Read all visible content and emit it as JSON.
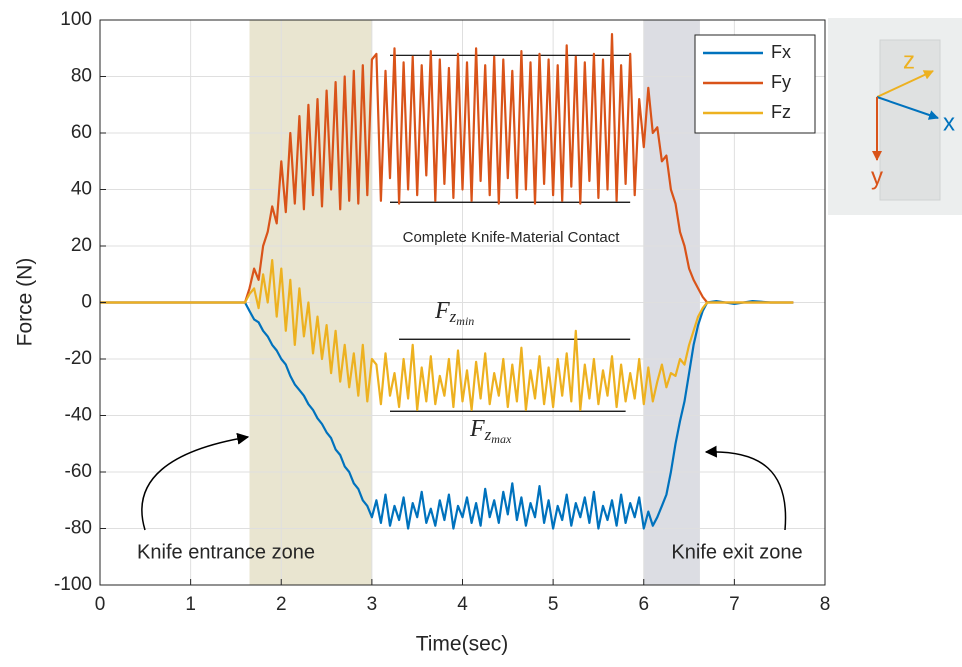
{
  "chart_data": {
    "type": "line",
    "xlabel": "Time(sec)",
    "ylabel": "Force (N)",
    "xlim": [
      0,
      8
    ],
    "ylim": [
      -100,
      100
    ],
    "xticks": [
      0,
      1,
      2,
      3,
      4,
      5,
      6,
      7,
      8
    ],
    "yticks": [
      -100,
      -80,
      -60,
      -40,
      -20,
      0,
      20,
      40,
      60,
      80,
      100
    ],
    "grid": true,
    "legend": "northeast",
    "x": [
      0,
      0.5,
      1,
      1.5,
      1.6,
      1.65,
      1.7,
      1.75,
      1.8,
      1.85,
      1.9,
      1.95,
      2,
      2.05,
      2.1,
      2.15,
      2.2,
      2.25,
      2.3,
      2.35,
      2.4,
      2.45,
      2.5,
      2.55,
      2.6,
      2.65,
      2.7,
      2.75,
      2.8,
      2.85,
      2.9,
      2.95,
      3,
      3.05,
      3.1,
      3.15,
      3.2,
      3.25,
      3.3,
      3.35,
      3.4,
      3.45,
      3.5,
      3.55,
      3.6,
      3.65,
      3.7,
      3.75,
      3.8,
      3.85,
      3.9,
      3.95,
      4,
      4.05,
      4.1,
      4.15,
      4.2,
      4.25,
      4.3,
      4.35,
      4.4,
      4.45,
      4.5,
      4.55,
      4.6,
      4.65,
      4.7,
      4.75,
      4.8,
      4.85,
      4.9,
      4.95,
      5,
      5.05,
      5.1,
      5.15,
      5.2,
      5.25,
      5.3,
      5.35,
      5.4,
      5.45,
      5.5,
      5.55,
      5.6,
      5.65,
      5.7,
      5.75,
      5.8,
      5.85,
      5.9,
      5.95,
      6,
      6.05,
      6.1,
      6.15,
      6.2,
      6.25,
      6.3,
      6.35,
      6.4,
      6.45,
      6.5,
      6.55,
      6.6,
      6.65,
      6.7,
      6.8,
      7,
      7.2,
      7.4,
      7.65
    ],
    "series": [
      {
        "name": "Fx",
        "color": "#0072bd",
        "values": [
          0,
          0,
          0,
          0,
          0,
          -3,
          -6,
          -7,
          -10,
          -12,
          -15,
          -17,
          -20,
          -22,
          -26,
          -29,
          -31,
          -33,
          -36,
          -38,
          -41,
          -43,
          -46,
          -48,
          -52,
          -54,
          -58,
          -60,
          -64,
          -66,
          -70,
          -72,
          -76,
          -70,
          -78,
          -68,
          -79,
          -72,
          -77,
          -69,
          -80,
          -71,
          -76,
          -67,
          -78,
          -73,
          -79,
          -70,
          -77,
          -68,
          -80,
          -72,
          -76,
          -69,
          -78,
          -71,
          -79,
          -66,
          -76,
          -70,
          -78,
          -67,
          -75,
          -64,
          -77,
          -69,
          -79,
          -71,
          -76,
          -65,
          -78,
          -70,
          -80,
          -72,
          -77,
          -68,
          -79,
          -71,
          -76,
          -69,
          -78,
          -67,
          -80,
          -72,
          -77,
          -70,
          -79,
          -68,
          -78,
          -71,
          -76,
          -69,
          -80,
          -74,
          -79,
          -76,
          -72,
          -68,
          -60,
          -50,
          -42,
          -35,
          -25,
          -15,
          -8,
          -3,
          0,
          0.5,
          -0.5,
          0.5,
          0,
          0
        ]
      },
      {
        "name": "Fy",
        "color": "#d95319",
        "values": [
          0,
          0,
          0,
          0,
          0,
          5,
          12,
          8,
          20,
          25,
          34,
          28,
          50,
          32,
          60,
          35,
          66,
          33,
          70,
          38,
          72,
          34,
          75,
          40,
          78,
          33,
          80,
          36,
          82,
          35,
          84,
          38,
          86,
          88,
          36,
          82,
          44,
          90,
          35,
          85,
          40,
          87,
          38,
          84,
          45,
          89,
          36,
          86,
          42,
          83,
          37,
          88,
          40,
          85,
          36,
          90,
          43,
          84,
          38,
          87,
          35,
          86,
          44,
          82,
          37,
          89,
          40,
          85,
          35,
          88,
          42,
          86,
          38,
          84,
          36,
          91,
          41,
          87,
          35,
          85,
          43,
          88,
          37,
          86,
          40,
          95,
          36,
          84,
          42,
          88,
          38,
          72,
          55,
          76,
          60,
          62,
          50,
          52,
          40,
          35,
          25,
          20,
          12,
          8,
          5,
          2,
          0,
          0,
          0,
          0,
          0,
          0
        ]
      },
      {
        "name": "Fz",
        "color": "#edb120",
        "values": [
          0,
          0,
          0,
          0,
          0,
          3,
          5,
          -2,
          10,
          0,
          15,
          -5,
          12,
          -10,
          8,
          -15,
          5,
          -12,
          0,
          -18,
          -5,
          -20,
          -8,
          -25,
          -10,
          -28,
          -15,
          -30,
          -18,
          -33,
          -15,
          -35,
          -20,
          -22,
          -36,
          -18,
          -33,
          -25,
          -37,
          -20,
          -34,
          -15,
          -38,
          -23,
          -35,
          -19,
          -36,
          -26,
          -33,
          -20,
          -37,
          -17,
          -35,
          -24,
          -38,
          -21,
          -34,
          -18,
          -36,
          -25,
          -33,
          -20,
          -37,
          -22,
          -35,
          -16,
          -38,
          -24,
          -34,
          -19,
          -36,
          -23,
          -37,
          -20,
          -33,
          -18,
          -35,
          -10,
          -38,
          -22,
          -34,
          -20,
          -36,
          -24,
          -33,
          -19,
          -37,
          -22,
          -35,
          -25,
          -34,
          -20,
          -36,
          -23,
          -35,
          -28,
          -22,
          -30,
          -25,
          -26,
          -20,
          -22,
          -15,
          -10,
          -5,
          -2,
          0,
          0,
          0,
          0,
          0,
          0
        ]
      }
    ],
    "shaded_regions": [
      {
        "x0": 1.65,
        "x1": 3,
        "color": "#e9e5d0"
      },
      {
        "x0": 6,
        "x1": 6.62,
        "color": "#dcdde3"
      }
    ],
    "reference_lines": [
      {
        "x0": 3.2,
        "x1": 5.85,
        "y": 87.5
      },
      {
        "x0": 3.2,
        "x1": 5.85,
        "y": 35.5
      },
      {
        "x0": 3.3,
        "x1": 5.85,
        "y": -13
      },
      {
        "x0": 3.2,
        "x1": 5.8,
        "y": -38.5
      }
    ],
    "annotations": {
      "contact": "Complete Knife-Material Contact",
      "entrance": "Knife entrance zone",
      "exit": "Knife exit zone",
      "fzmin": {
        "base": "F",
        "sub": "z",
        "subsub": "min"
      },
      "fzmax": {
        "base": "F",
        "sub": "z",
        "subsub": "max"
      }
    },
    "inset": {
      "z": "z",
      "x": "x",
      "y": "y"
    }
  }
}
